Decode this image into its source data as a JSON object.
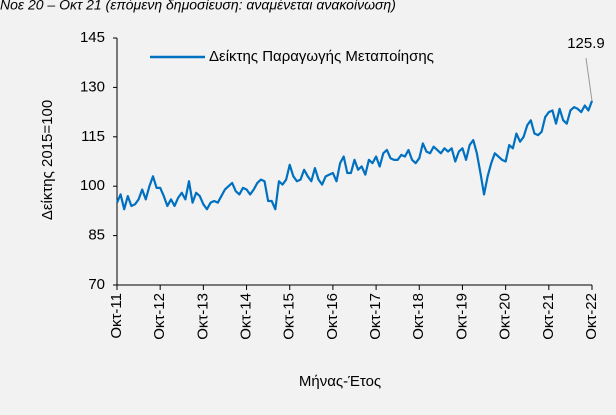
{
  "header_note": "Νοε 20 – Οκτ 21 (επόμενη δημοσίευση: αναμένεται ανακοίνωση)",
  "chart_data": {
    "type": "line",
    "x_label": "Μήνας-Έτος",
    "y_label": "Δείκτης 2015=100",
    "categories": [
      "Οκτ-11",
      null,
      null,
      null,
      null,
      null,
      null,
      null,
      null,
      null,
      null,
      null,
      "Οκτ-12",
      null,
      null,
      null,
      null,
      null,
      null,
      null,
      null,
      null,
      null,
      null,
      "Οκτ-13",
      null,
      null,
      null,
      null,
      null,
      null,
      null,
      null,
      null,
      null,
      null,
      "Οκτ-14",
      null,
      null,
      null,
      null,
      null,
      null,
      null,
      null,
      null,
      null,
      null,
      "Οκτ-15",
      null,
      null,
      null,
      null,
      null,
      null,
      null,
      null,
      null,
      null,
      null,
      "Οκτ-16",
      null,
      null,
      null,
      null,
      null,
      null,
      null,
      null,
      null,
      null,
      null,
      "Οκτ-17",
      null,
      null,
      null,
      null,
      null,
      null,
      null,
      null,
      null,
      null,
      null,
      "Οκτ-18",
      null,
      null,
      null,
      null,
      null,
      null,
      null,
      null,
      null,
      null,
      null,
      "Οκτ-19",
      null,
      null,
      null,
      null,
      null,
      null,
      null,
      null,
      null,
      null,
      null,
      "Οκτ-20",
      null,
      null,
      null,
      null,
      null,
      null,
      null,
      null,
      null,
      null,
      null,
      "Οκτ-21",
      null,
      null,
      null,
      null,
      null,
      null,
      null,
      null,
      null,
      null,
      null,
      "Οκτ-22"
    ],
    "series": [
      {
        "name": "Δείκτης Παραγωγής Μεταποίησης",
        "color": "#0070c0",
        "values": [
          95,
          97.5,
          93,
          97,
          94,
          94.5,
          96,
          99,
          96,
          100,
          103,
          99.5,
          99.5,
          97,
          94,
          96,
          94,
          96.5,
          98,
          96,
          101.5,
          95,
          98,
          97,
          94.5,
          93,
          95,
          95.5,
          95,
          97,
          99,
          100,
          101,
          98.5,
          97.5,
          99.5,
          99,
          97.5,
          99,
          101,
          102,
          101.5,
          95.5,
          95.5,
          93,
          101.5,
          100.5,
          102,
          106.5,
          103,
          101.5,
          102,
          105,
          103,
          101.5,
          105.5,
          102,
          100.5,
          103,
          103.5,
          104,
          101.5,
          107,
          109,
          104,
          104,
          108,
          105,
          106,
          103.5,
          108,
          107,
          109,
          106,
          110,
          111,
          108.5,
          108,
          108,
          109.5,
          109,
          111,
          108,
          107,
          108.5,
          113,
          110.5,
          110,
          112,
          111,
          110,
          111.5,
          110.5,
          111.5,
          107.5,
          110.5,
          111.5,
          108,
          112.5,
          114,
          110,
          104,
          97.5,
          103,
          107,
          110,
          109,
          108,
          107.5,
          112.5,
          111.5,
          116,
          113.5,
          115,
          118.5,
          120,
          116,
          115.5,
          116.5,
          121,
          122.5,
          123,
          119,
          123.5,
          120,
          119,
          123,
          124,
          123.5,
          122.5,
          124.5,
          123,
          125.9
        ]
      }
    ],
    "ylim": [
      70,
      145
    ],
    "yticks": [
      70,
      85,
      100,
      115,
      130,
      145
    ],
    "grid": false,
    "legend": "top-left"
  }
}
